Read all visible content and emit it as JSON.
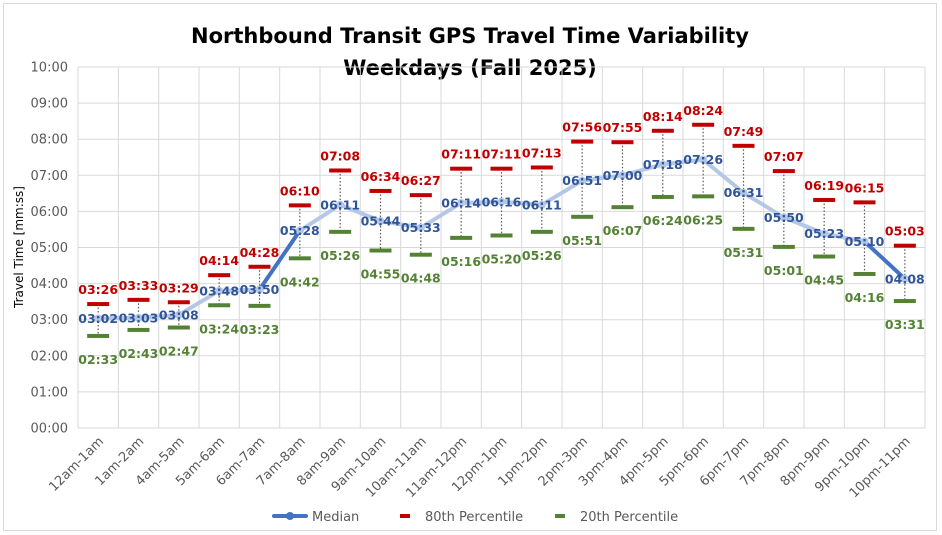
{
  "chart_data": {
    "type": "line",
    "title": "Northbound Transit GPS Travel Time Variability",
    "subtitle": "Weekdays (Fall 2025)",
    "xlabel": "",
    "ylabel": "Travel Time [mm:ss]",
    "ylim": [
      "00:00",
      "10:00"
    ],
    "yticks": [
      "00:00",
      "01:00",
      "02:00",
      "03:00",
      "04:00",
      "05:00",
      "06:00",
      "07:00",
      "08:00",
      "09:00",
      "10:00"
    ],
    "grid": true,
    "legend_position": "bottom",
    "categories": [
      "12am-1am",
      "1am-2am",
      "4am-5am",
      "5am-6am",
      "6am-7am",
      "7am-8am",
      "8am-9am",
      "9am-10am",
      "10am-11am",
      "11am-12pm",
      "12pm-1pm",
      "1pm-2pm",
      "2pm-3pm",
      "3pm-4pm",
      "4pm-5pm",
      "5pm-6pm",
      "6pm-7pm",
      "7pm-8pm",
      "8pm-9pm",
      "9pm-10pm",
      "10pm-11pm"
    ],
    "series": [
      {
        "name": "Median",
        "color": "#4472c4",
        "values": [
          "03:02",
          "03:03",
          "03:08",
          "03:48",
          "03:50",
          "05:28",
          "06:11",
          "05:44",
          "05:33",
          "06:14",
          "06:16",
          "06:11",
          "06:51",
          "07:00",
          "07:18",
          "07:26",
          "06:31",
          "05:50",
          "05:23",
          "05:10",
          "04:08"
        ]
      },
      {
        "name": "80th Percentile",
        "color": "#c00000",
        "values": [
          "03:26",
          "03:33",
          "03:29",
          "04:14",
          "04:28",
          "06:10",
          "07:08",
          "06:34",
          "06:27",
          "07:11",
          "07:11",
          "07:13",
          "07:56",
          "07:55",
          "08:14",
          "08:24",
          "07:49",
          "07:07",
          "06:19",
          "06:15",
          "05:03"
        ]
      },
      {
        "name": "20th Percentile",
        "color": "#548235",
        "values": [
          "02:33",
          "02:43",
          "02:47",
          "03:24",
          "03:23",
          "04:42",
          "05:26",
          "04:55",
          "04:48",
          "05:16",
          "05:20",
          "05:26",
          "05:51",
          "06:07",
          "06:24",
          "06:25",
          "05:31",
          "05:01",
          "04:45",
          "04:16",
          "03:31"
        ]
      }
    ],
    "median_line_light_color": "#b4c7e7",
    "dropline_color": "#595959"
  }
}
